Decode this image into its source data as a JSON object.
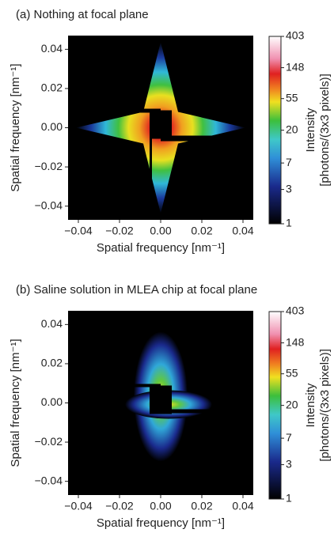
{
  "chart_data": [
    {
      "type": "heatmap",
      "title": "(a) Nothing at focal plane",
      "xlabel": "Spatial frequency [nm⁻¹]",
      "ylabel": "Spatial frequency [nm⁻¹]",
      "xlim": [
        -0.045,
        0.045
      ],
      "ylim": [
        -0.047,
        0.047
      ],
      "xticks": [
        {
          "value": -0.04,
          "label": "−0.04"
        },
        {
          "value": -0.02,
          "label": "−0.02"
        },
        {
          "value": 0,
          "label": "0.00"
        },
        0.02,
        0.04
      ],
      "yticks": [
        {
          "value": -0.04,
          "label": "−0.04"
        },
        {
          "value": -0.02,
          "label": "−0.02"
        },
        {
          "value": 0,
          "label": "0.00"
        },
        0.02,
        0.04
      ],
      "colorbar": {
        "label": [
          "Intensity",
          "[photons/(3x3 pixels)]"
        ],
        "lim": [
          1,
          403
        ],
        "ticks": [
          1,
          3,
          7,
          20,
          55,
          148,
          403
        ],
        "scale": "log"
      }
    },
    {
      "type": "heatmap",
      "title": "(b) Saline solution in MLEA chip at focal plane",
      "xlabel": "Spatial frequency [nm⁻¹]",
      "ylabel": "Spatial frequency [nm⁻¹]",
      "xlim": [
        -0.045,
        0.045
      ],
      "ylim": [
        -0.047,
        0.047
      ],
      "xticks": [
        {
          "value": -0.04,
          "label": "−0.04"
        },
        {
          "value": -0.02,
          "label": "−0.02"
        },
        {
          "value": 0,
          "label": "0.00"
        },
        0.02,
        0.04
      ],
      "yticks": [
        {
          "value": -0.04,
          "label": "−0.04"
        },
        {
          "value": -0.02,
          "label": "−0.02"
        },
        {
          "value": 0,
          "label": "0.00"
        },
        0.02,
        0.04
      ],
      "colorbar": {
        "label": [
          "Intensity",
          "[photons/(3x3 pixels)]"
        ],
        "lim": [
          1,
          403
        ],
        "ticks": [
          1,
          3,
          7,
          20,
          55,
          148,
          403
        ],
        "scale": "log"
      }
    }
  ]
}
